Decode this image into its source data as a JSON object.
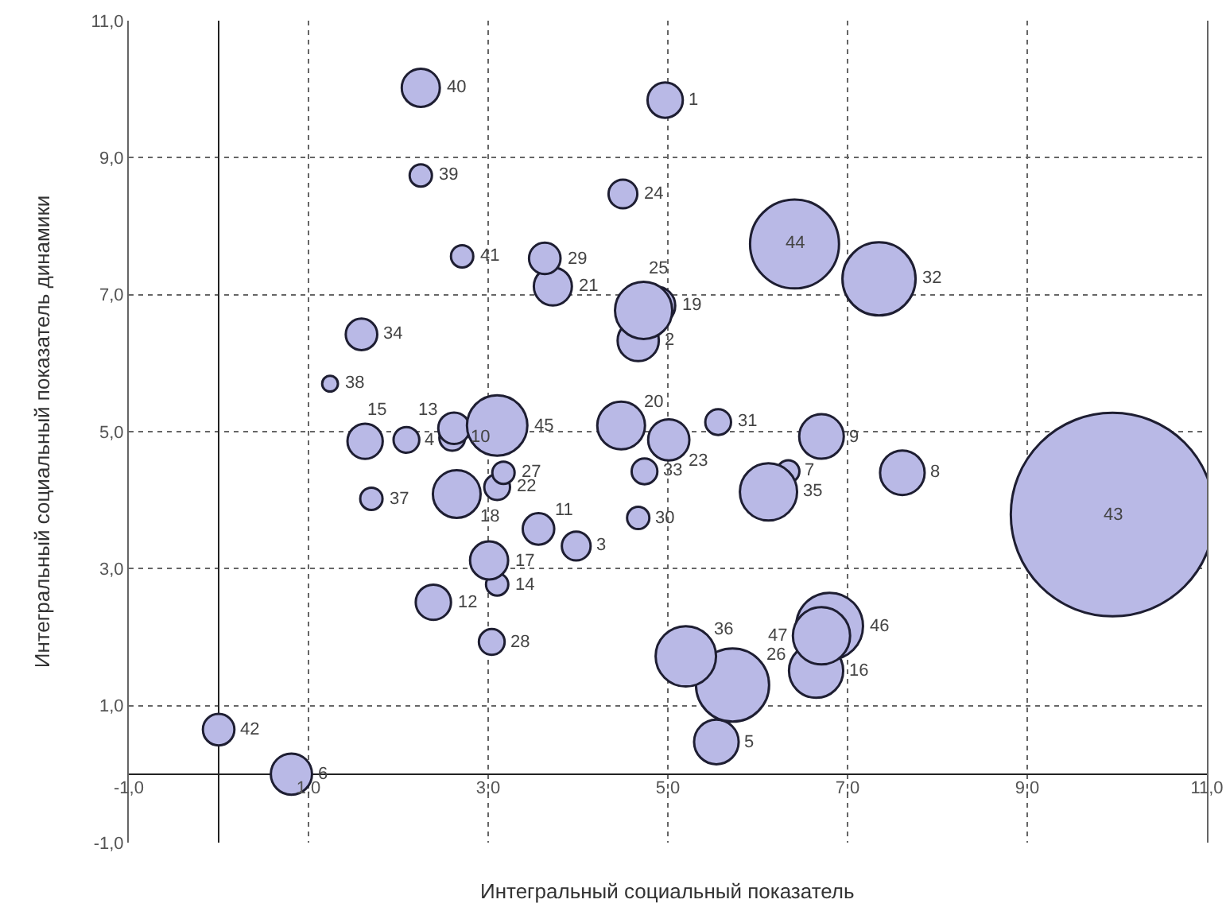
{
  "chart_data": {
    "type": "bubble",
    "xlabel": "Интегральный социальный показатель",
    "ylabel": "Интегральный социальный показатель динамики",
    "xlim": [
      -1,
      11
    ],
    "ylim": [
      -1,
      11
    ],
    "xticks": [
      {
        "value": -1,
        "label": "-1,0"
      },
      {
        "value": 1,
        "label": "1,0"
      },
      {
        "value": 3,
        "label": "3,0"
      },
      {
        "value": 5,
        "label": "5,0"
      },
      {
        "value": 7,
        "label": "7,0"
      },
      {
        "value": 9,
        "label": "9,0"
      },
      {
        "value": 11,
        "label": "11,0"
      }
    ],
    "yticks": [
      {
        "value": -1,
        "label": "-1,0"
      },
      {
        "value": 1,
        "label": "1,0"
      },
      {
        "value": 3,
        "label": "3,0"
      },
      {
        "value": 5,
        "label": "5,0"
      },
      {
        "value": 7,
        "label": "7,0"
      },
      {
        "value": 9,
        "label": "9,0"
      },
      {
        "value": 11,
        "label": "11,0"
      }
    ],
    "grid": true,
    "marker": "circle",
    "color": "#b9b9e6",
    "x": [
      4.97,
      4.67,
      3.98,
      2.09,
      5.54,
      0.81,
      6.34,
      7.61,
      6.71,
      2.6,
      3.56,
      2.39,
      2.62,
      3.1,
      1.63,
      6.65,
      3.01,
      2.65,
      4.87,
      4.48,
      3.72,
      3.1,
      5.01,
      4.5,
      4.73,
      5.72,
      3.17,
      3.04,
      3.63,
      4.67,
      5.56,
      7.35,
      4.74,
      1.59,
      6.12,
      5.2,
      1.7,
      1.24,
      2.25,
      2.25,
      2.71,
      0.0,
      9.95,
      6.41,
      3.1,
      6.8,
      6.71
    ],
    "values": [
      9.84,
      6.33,
      3.33,
      4.88,
      0.47,
      0.0,
      4.42,
      4.4,
      4.93,
      4.91,
      3.58,
      2.51,
      5.05,
      2.77,
      4.86,
      1.51,
      3.12,
      4.09,
      6.84,
      5.09,
      7.12,
      4.19,
      4.88,
      8.47,
      6.77,
      1.3,
      4.4,
      1.93,
      7.53,
      3.74,
      5.14,
      7.23,
      4.42,
      6.42,
      4.12,
      1.72,
      4.02,
      5.7,
      8.74,
      10.02,
      7.56,
      0.65,
      3.79,
      7.74,
      5.09,
      2.16,
      2.02
    ],
    "sizes": [
      0.03,
      0.041,
      0.02,
      0.016,
      0.048,
      0.041,
      0.012,
      0.048,
      0.048,
      0.016,
      0.024,
      0.03,
      0.024,
      0.012,
      0.03,
      0.071,
      0.035,
      0.055,
      0.035,
      0.055,
      0.035,
      0.016,
      0.041,
      0.02,
      0.079,
      0.129,
      0.012,
      0.016,
      0.024,
      0.012,
      0.016,
      0.129,
      0.016,
      0.024,
      0.079,
      0.088,
      0.012,
      0.006,
      0.012,
      0.035,
      0.012,
      0.024,
      1,
      0.191,
      0.088,
      0.108,
      0.079
    ],
    "annotations": [
      {
        "text": "1",
        "x": 4.97,
        "y": 9.84
      },
      {
        "text": "2",
        "x": 4.67,
        "y": 6.33
      },
      {
        "text": "3",
        "x": 3.98,
        "y": 3.33
      },
      {
        "text": "4",
        "x": 2.09,
        "y": 4.88
      },
      {
        "text": "5",
        "x": 5.54,
        "y": 0.47
      },
      {
        "text": "6",
        "x": 0.81,
        "y": 0.0
      },
      {
        "text": "7",
        "x": 6.34,
        "y": 4.42
      },
      {
        "text": "8",
        "x": 7.61,
        "y": 4.4
      },
      {
        "text": "9",
        "x": 6.71,
        "y": 4.93
      },
      {
        "text": "10",
        "x": 2.6,
        "y": 4.91
      },
      {
        "text": "11",
        "x": 3.56,
        "y": 3.58
      },
      {
        "text": "12",
        "x": 2.39,
        "y": 2.51
      },
      {
        "text": "13",
        "x": 2.62,
        "y": 5.05
      },
      {
        "text": "14",
        "x": 3.1,
        "y": 2.77
      },
      {
        "text": "15",
        "x": 1.63,
        "y": 4.86
      },
      {
        "text": "16",
        "x": 6.65,
        "y": 1.51
      },
      {
        "text": "17",
        "x": 3.01,
        "y": 3.12
      },
      {
        "text": "18",
        "x": 2.65,
        "y": 4.09
      },
      {
        "text": "19",
        "x": 4.87,
        "y": 6.84
      },
      {
        "text": "20",
        "x": 4.48,
        "y": 5.09
      },
      {
        "text": "21",
        "x": 3.72,
        "y": 7.12
      },
      {
        "text": "22",
        "x": 3.1,
        "y": 4.19
      },
      {
        "text": "23",
        "x": 5.01,
        "y": 4.88
      },
      {
        "text": "24",
        "x": 4.5,
        "y": 8.47
      },
      {
        "text": "25",
        "x": 4.73,
        "y": 6.77
      },
      {
        "text": "26",
        "x": 5.72,
        "y": 1.3
      },
      {
        "text": "27",
        "x": 3.17,
        "y": 4.4
      },
      {
        "text": "28",
        "x": 3.04,
        "y": 1.93
      },
      {
        "text": "29",
        "x": 3.63,
        "y": 7.53
      },
      {
        "text": "30",
        "x": 4.67,
        "y": 3.74
      },
      {
        "text": "31",
        "x": 5.56,
        "y": 5.14
      },
      {
        "text": "32",
        "x": 7.35,
        "y": 7.23
      },
      {
        "text": "33",
        "x": 4.74,
        "y": 4.42
      },
      {
        "text": "34",
        "x": 1.59,
        "y": 6.42
      },
      {
        "text": "35",
        "x": 6.12,
        "y": 4.12
      },
      {
        "text": "36",
        "x": 5.2,
        "y": 1.72
      },
      {
        "text": "37",
        "x": 1.7,
        "y": 4.02
      },
      {
        "text": "38",
        "x": 1.24,
        "y": 5.7
      },
      {
        "text": "39",
        "x": 2.25,
        "y": 8.74
      },
      {
        "text": "40",
        "x": 2.25,
        "y": 10.02
      },
      {
        "text": "41",
        "x": 2.71,
        "y": 7.56
      },
      {
        "text": "42",
        "x": 0.0,
        "y": 0.65
      },
      {
        "text": "43",
        "x": 9.95,
        "y": 3.79
      },
      {
        "text": "44",
        "x": 6.41,
        "y": 7.74
      },
      {
        "text": "45",
        "x": 3.1,
        "y": 5.09
      },
      {
        "text": "46",
        "x": 6.8,
        "y": 2.16
      },
      {
        "text": "47",
        "x": 6.71,
        "y": 2.02
      }
    ]
  }
}
